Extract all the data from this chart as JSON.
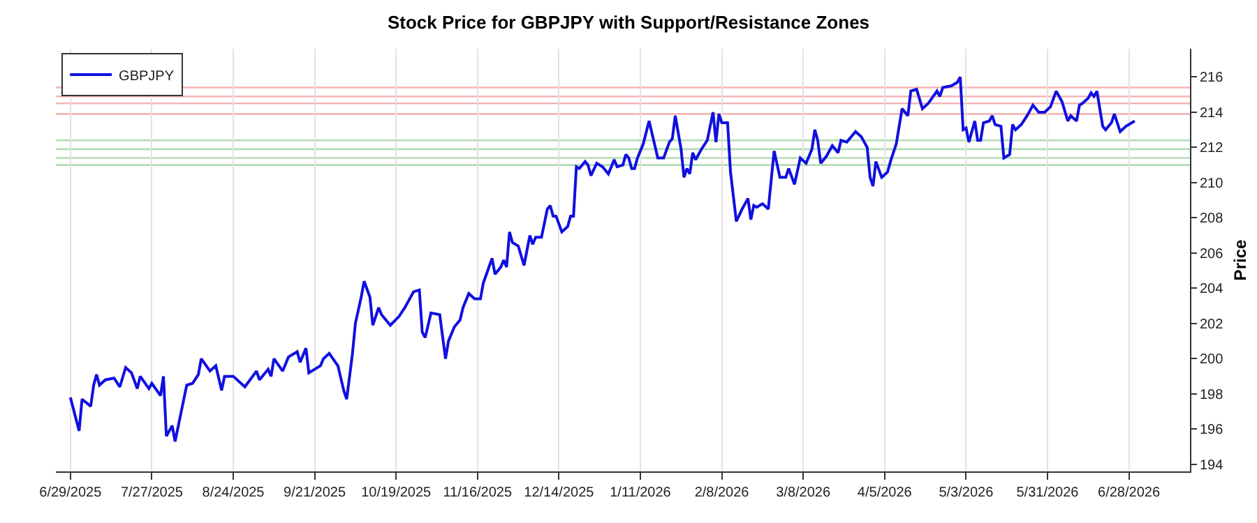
{
  "chart_data": {
    "type": "line",
    "title": "Stock Price for GBPJPY with Support/Resistance Zones",
    "ylabel": "Price",
    "x": [
      "2025-06-29",
      "2025-07-02",
      "2025-07-03",
      "2025-07-06",
      "2025-07-07",
      "2025-07-08",
      "2025-07-09",
      "2025-07-11",
      "2025-07-14",
      "2025-07-16",
      "2025-07-18",
      "2025-07-20",
      "2025-07-22",
      "2025-07-23",
      "2025-07-26",
      "2025-07-27",
      "2025-07-30",
      "2025-07-31",
      "2025-08-01",
      "2025-08-03",
      "2025-08-04",
      "2025-08-06",
      "2025-08-08",
      "2025-08-10",
      "2025-08-12",
      "2025-08-13",
      "2025-08-16",
      "2025-08-18",
      "2025-08-20",
      "2025-08-21",
      "2025-08-24",
      "2025-08-28",
      "2025-09-01",
      "2025-09-02",
      "2025-09-05",
      "2025-09-06",
      "2025-09-07",
      "2025-09-10",
      "2025-09-12",
      "2025-09-15",
      "2025-09-16",
      "2025-09-18",
      "2025-09-19",
      "2025-09-23",
      "2025-09-24",
      "2025-09-26",
      "2025-09-29",
      "2025-10-01",
      "2025-10-02",
      "2025-10-04",
      "2025-10-05",
      "2025-10-07",
      "2025-10-08",
      "2025-10-10",
      "2025-10-11",
      "2025-10-13",
      "2025-10-14",
      "2025-10-17",
      "2025-10-20",
      "2025-10-22",
      "2025-10-25",
      "2025-10-27",
      "2025-10-28",
      "2025-10-29",
      "2025-10-31",
      "2025-11-03",
      "2025-11-05",
      "2025-11-06",
      "2025-11-08",
      "2025-11-10",
      "2025-11-11",
      "2025-11-13",
      "2025-11-15",
      "2025-11-17",
      "2025-11-18",
      "2025-11-21",
      "2025-11-22",
      "2025-11-24",
      "2025-11-25",
      "2025-11-26",
      "2025-11-27",
      "2025-11-28",
      "2025-11-30",
      "2025-12-02",
      "2025-12-04",
      "2025-12-05",
      "2025-12-06",
      "2025-12-08",
      "2025-12-10",
      "2025-12-11",
      "2025-12-12",
      "2025-12-13",
      "2025-12-15",
      "2025-12-17",
      "2025-12-18",
      "2025-12-19",
      "2025-12-20",
      "2025-12-21",
      "2025-12-23",
      "2025-12-24",
      "2025-12-25",
      "2025-12-27",
      "2025-12-29",
      "2025-12-31",
      "2026-01-02",
      "2026-01-03",
      "2026-01-05",
      "2026-01-06",
      "2026-01-07",
      "2026-01-08",
      "2026-01-09",
      "2026-01-10",
      "2026-01-12",
      "2026-01-14",
      "2026-01-15",
      "2026-01-17",
      "2026-01-19",
      "2026-01-21",
      "2026-01-22",
      "2026-01-23",
      "2026-01-25",
      "2026-01-26",
      "2026-01-27",
      "2026-01-28",
      "2026-01-29",
      "2026-01-30",
      "2026-02-01",
      "2026-02-03",
      "2026-02-05",
      "2026-02-06",
      "2026-02-07",
      "2026-02-08",
      "2026-02-10",
      "2026-02-11",
      "2026-02-13",
      "2026-02-15",
      "2026-02-17",
      "2026-02-18",
      "2026-02-19",
      "2026-02-20",
      "2026-02-22",
      "2026-02-24",
      "2026-02-26",
      "2026-02-28",
      "2026-03-02",
      "2026-03-03",
      "2026-03-05",
      "2026-03-07",
      "2026-03-09",
      "2026-03-11",
      "2026-03-12",
      "2026-03-13",
      "2026-03-14",
      "2026-03-16",
      "2026-03-18",
      "2026-03-20",
      "2026-03-21",
      "2026-03-23",
      "2026-03-26",
      "2026-03-28",
      "2026-03-30",
      "2026-03-31",
      "2026-04-01",
      "2026-04-02",
      "2026-04-04",
      "2026-04-06",
      "2026-04-07",
      "2026-04-09",
      "2026-04-11",
      "2026-04-13",
      "2026-04-14",
      "2026-04-16",
      "2026-04-18",
      "2026-04-20",
      "2026-04-23",
      "2026-04-24",
      "2026-04-25",
      "2026-04-28",
      "2026-04-30",
      "2026-05-01",
      "2026-05-02",
      "2026-05-03",
      "2026-05-04",
      "2026-05-06",
      "2026-05-07",
      "2026-05-08",
      "2026-05-09",
      "2026-05-11",
      "2026-05-12",
      "2026-05-13",
      "2026-05-15",
      "2026-05-16",
      "2026-05-18",
      "2026-05-19",
      "2026-05-20",
      "2026-05-22",
      "2026-05-24",
      "2026-05-26",
      "2026-05-28",
      "2026-05-30",
      "2026-06-01",
      "2026-06-03",
      "2026-06-05",
      "2026-06-07",
      "2026-06-08",
      "2026-06-10",
      "2026-06-11",
      "2026-06-12",
      "2026-06-14",
      "2026-06-15",
      "2026-06-16",
      "2026-06-17",
      "2026-06-19",
      "2026-06-20",
      "2026-06-22",
      "2026-06-23",
      "2026-06-25",
      "2026-06-27",
      "2026-06-28",
      "2026-06-30"
    ],
    "series": [
      {
        "name": "GBPJPY",
        "color": "#1010e0",
        "line_style": "solid",
        "values": [
          197.8,
          195.9,
          197.7,
          197.3,
          198.5,
          199.1,
          198.5,
          198.8,
          198.9,
          198.4,
          199.5,
          199.2,
          198.3,
          199.0,
          198.3,
          198.6,
          197.9,
          199.0,
          195.6,
          196.2,
          195.3,
          196.9,
          198.5,
          198.6,
          199.1,
          200.0,
          199.3,
          199.6,
          198.2,
          199.0,
          199.0,
          198.4,
          199.3,
          198.8,
          199.4,
          199.0,
          200.0,
          199.3,
          200.1,
          200.4,
          199.8,
          200.6,
          199.2,
          199.6,
          200.0,
          200.3,
          199.6,
          198.2,
          197.7,
          200.3,
          202.0,
          203.5,
          204.4,
          203.5,
          201.9,
          202.9,
          202.5,
          201.9,
          202.4,
          202.9,
          203.8,
          203.9,
          201.5,
          201.2,
          202.6,
          202.5,
          200.0,
          201.0,
          201.8,
          202.2,
          202.9,
          203.7,
          203.4,
          203.4,
          204.3,
          205.7,
          204.8,
          205.2,
          205.6,
          205.2,
          207.2,
          206.6,
          206.4,
          205.3,
          207.0,
          206.5,
          206.9,
          206.9,
          208.5,
          208.7,
          208.1,
          208.1,
          207.2,
          207.5,
          208.1,
          208.1,
          210.9,
          210.8,
          211.2,
          211.0,
          210.4,
          211.1,
          210.9,
          210.5,
          211.3,
          210.9,
          211.0,
          211.6,
          211.4,
          210.8,
          210.8,
          211.4,
          212.2,
          213.5,
          212.8,
          211.4,
          211.4,
          212.3,
          212.5,
          213.8,
          211.9,
          210.3,
          210.8,
          210.5,
          211.7,
          211.3,
          211.9,
          212.4,
          214.0,
          212.3,
          213.9,
          213.4,
          213.4,
          210.6,
          207.8,
          208.5,
          209.1,
          207.9,
          208.7,
          208.6,
          208.8,
          208.5,
          211.8,
          210.3,
          210.3,
          210.8,
          209.9,
          211.4,
          211.1,
          211.9,
          213.0,
          212.4,
          211.1,
          211.5,
          212.1,
          211.7,
          212.4,
          212.3,
          212.9,
          212.6,
          212.0,
          210.3,
          209.8,
          211.2,
          210.3,
          210.6,
          211.2,
          212.2,
          214.2,
          213.8,
          215.2,
          215.3,
          214.2,
          214.5,
          215.2,
          214.9,
          215.4,
          215.5,
          215.7,
          216.0,
          213.0,
          213.1,
          212.3,
          213.5,
          212.4,
          212.4,
          213.4,
          213.5,
          213.8,
          213.3,
          213.2,
          211.4,
          211.6,
          213.3,
          213.0,
          213.3,
          213.8,
          214.4,
          214.0,
          214.0,
          214.3,
          215.2,
          214.6,
          213.5,
          213.8,
          213.5,
          214.4,
          214.5,
          214.8,
          215.1,
          214.9,
          215.2,
          213.2,
          213.0,
          213.4,
          213.9,
          212.9,
          213.2,
          213.3,
          213.5
        ]
      }
    ],
    "xlim": [
      "2025-06-24",
      "2026-07-19"
    ],
    "xticks": [
      {
        "value": "2025-06-29",
        "label": "6/29/2025"
      },
      {
        "value": "2025-07-27",
        "label": "7/27/2025"
      },
      {
        "value": "2025-08-24",
        "label": "8/24/2025"
      },
      {
        "value": "2025-09-21",
        "label": "9/21/2025"
      },
      {
        "value": "2025-10-19",
        "label": "10/19/2025"
      },
      {
        "value": "2025-11-16",
        "label": "11/16/2025"
      },
      {
        "value": "2025-12-14",
        "label": "12/14/2025"
      },
      {
        "value": "2026-01-11",
        "label": "1/11/2026"
      },
      {
        "value": "2026-02-08",
        "label": "2/8/2026"
      },
      {
        "value": "2026-03-08",
        "label": "3/8/2026"
      },
      {
        "value": "2026-04-05",
        "label": "4/5/2026"
      },
      {
        "value": "2026-05-03",
        "label": "5/3/2026"
      },
      {
        "value": "2026-05-31",
        "label": "5/31/2026"
      },
      {
        "value": "2026-06-28",
        "label": "6/28/2026"
      }
    ],
    "ylim": [
      193.6,
      217.6
    ],
    "yticks": [
      194,
      196,
      198,
      200,
      202,
      204,
      206,
      208,
      210,
      212,
      214,
      216
    ],
    "ref_lines": [
      {
        "axis": "y",
        "value": 215.4,
        "color": "#f4b4b4"
      },
      {
        "axis": "y",
        "value": 214.9,
        "color": "#f4b4b4"
      },
      {
        "axis": "y",
        "value": 214.5,
        "color": "#f4b4b4"
      },
      {
        "axis": "y",
        "value": 213.9,
        "color": "#f4b4b4"
      },
      {
        "axis": "y",
        "value": 212.4,
        "color": "#b4dcb4"
      },
      {
        "axis": "y",
        "value": 211.9,
        "color": "#b4dcb4"
      },
      {
        "axis": "y",
        "value": 211.4,
        "color": "#b4dcb4"
      },
      {
        "axis": "y",
        "value": 211.0,
        "color": "#b4dcb4"
      }
    ],
    "grid": "x",
    "legend": "top left"
  }
}
